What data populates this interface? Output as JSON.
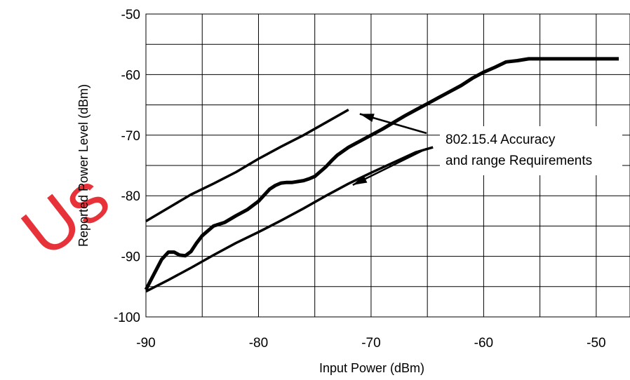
{
  "chart_data": {
    "type": "line",
    "xlabel": "Input Power (dBm)",
    "ylabel": "Reported Power Level (dBm)",
    "xlim": [
      -90,
      -47
    ],
    "ylim": [
      -100,
      -50
    ],
    "xticks": [
      -90,
      -80,
      -70,
      -60,
      -50
    ],
    "yticks": [
      -100,
      -90,
      -80,
      -70,
      -60,
      -50
    ],
    "grid": true,
    "series": [
      {
        "role": "measured",
        "x": [
          -90,
          -89.3,
          -88.6,
          -88,
          -87.5,
          -87,
          -86.5,
          -86,
          -85.5,
          -85,
          -84,
          -83.5,
          -83,
          -82,
          -81,
          -80,
          -79.5,
          -79,
          -78.5,
          -78,
          -77.5,
          -77,
          -76,
          -75.5,
          -75,
          -74,
          -73.5,
          -73,
          -72,
          -71,
          -70,
          -69,
          -68,
          -67,
          -66,
          -65,
          -64,
          -63,
          -62,
          -61,
          -60,
          -59,
          -58,
          -57,
          -56,
          -55,
          -54,
          -52,
          -50,
          -48
        ],
        "y": [
          -95.5,
          -93,
          -90.5,
          -89.3,
          -89.3,
          -89.8,
          -89.9,
          -89.2,
          -87.8,
          -86.6,
          -85,
          -84.7,
          -84.4,
          -83.3,
          -82.3,
          -80.9,
          -79.9,
          -78.9,
          -78.3,
          -77.9,
          -77.8,
          -77.8,
          -77.5,
          -77.2,
          -76.8,
          -75.2,
          -74.2,
          -73.3,
          -72,
          -71,
          -70,
          -69,
          -67.9,
          -66.8,
          -65.8,
          -64.8,
          -63.8,
          -62.8,
          -61.8,
          -60.6,
          -59.6,
          -58.8,
          -57.9,
          -57.7,
          -57.4,
          -57.4,
          -57.4,
          -57.4,
          -57.4,
          -57.4
        ]
      },
      {
        "role": "upper-limit",
        "x": [
          -90,
          -88,
          -86,
          -84,
          -82,
          -80,
          -78,
          -76,
          -74,
          -72
        ],
        "y": [
          -84.2,
          -82,
          -79.8,
          -78,
          -76.1,
          -73.9,
          -71.9,
          -70,
          -67.9,
          -65.8
        ]
      },
      {
        "role": "lower-limit",
        "x": [
          -90,
          -88,
          -86,
          -84,
          -82,
          -80,
          -78,
          -76,
          -74,
          -72,
          -70,
          -68,
          -66,
          -64.5
        ],
        "y": [
          -95.8,
          -93.9,
          -91.9,
          -89.8,
          -87.8,
          -86,
          -84.1,
          -82.1,
          -80,
          -78,
          -76.2,
          -74.5,
          -72.8,
          -72
        ]
      }
    ],
    "annotation": {
      "lines": [
        "802.15.4 Accuracy",
        "and range Requirements"
      ],
      "arrow_to_upper": {
        "x": -72,
        "y": -65.8
      },
      "arrow_to_lower": {
        "x": -72,
        "y": -78
      }
    }
  },
  "watermark": {
    "text": "Us",
    "color": "#e8323a"
  }
}
